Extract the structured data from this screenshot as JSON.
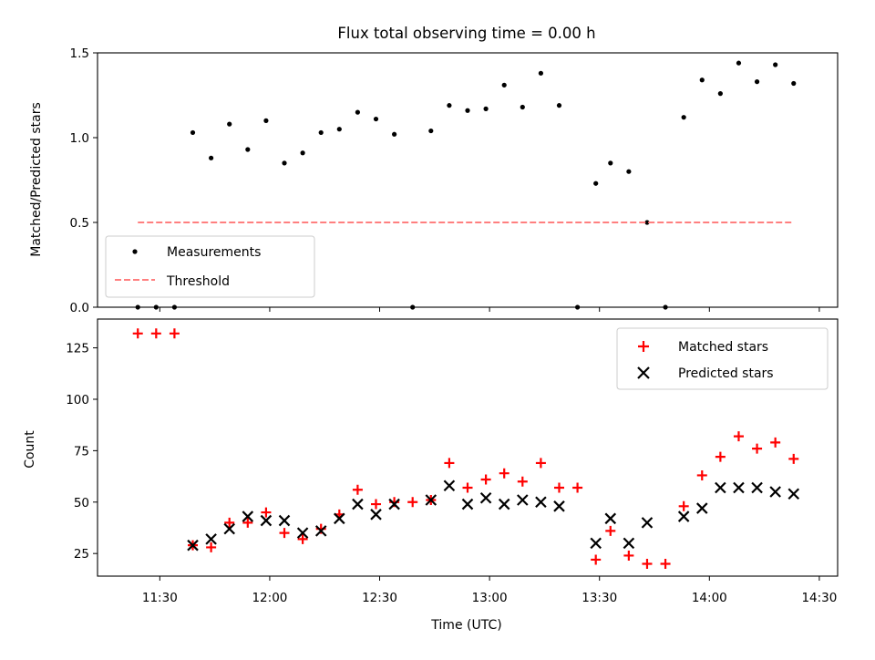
{
  "chart_data": [
    {
      "type": "scatter",
      "title": "Flux total observing time = 0.00 h",
      "ylabel": "Matched/Predicted stars",
      "xlabel": "",
      "ylim": [
        0,
        1.5
      ],
      "xlim": [
        "11:13",
        "14:35"
      ],
      "yticks": [
        0.0,
        0.5,
        1.0,
        1.5
      ],
      "ytick_labels": [
        "0.0",
        "0.5",
        "1.0",
        "1.5"
      ],
      "grid": false,
      "legend": {
        "placement": "lower-left",
        "entries": [
          "Measurements",
          "Threshold"
        ]
      },
      "series": [
        {
          "name": "Measurements",
          "marker": "dot",
          "color": "#000000",
          "x": [
            "11:24",
            "11:29",
            "11:34",
            "11:39",
            "11:44",
            "11:49",
            "11:54",
            "11:59",
            "12:04",
            "12:09",
            "12:14",
            "12:19",
            "12:24",
            "12:29",
            "12:34",
            "12:39",
            "12:44",
            "12:49",
            "12:54",
            "12:59",
            "13:04",
            "13:09",
            "13:14",
            "13:19",
            "13:24",
            "13:29",
            "13:33",
            "13:38",
            "13:43",
            "13:48",
            "13:53",
            "13:58",
            "14:03",
            "14:08",
            "14:13",
            "14:18",
            "14:23"
          ],
          "y": [
            0.0,
            0.0,
            0.0,
            1.03,
            0.88,
            1.08,
            0.93,
            1.1,
            0.85,
            0.91,
            1.03,
            1.05,
            1.15,
            1.11,
            1.02,
            0.0,
            1.04,
            1.19,
            1.16,
            1.17,
            1.31,
            1.18,
            1.38,
            1.19,
            0.0,
            0.73,
            0.85,
            0.8,
            0.5,
            0.0,
            1.12,
            1.34,
            1.26,
            1.44,
            1.33,
            1.43,
            1.32
          ]
        },
        {
          "name": "Threshold",
          "style": "dashed",
          "color": "#ff7f7f",
          "x": [
            "11:24",
            "14:23"
          ],
          "y": [
            0.5,
            0.5
          ]
        }
      ]
    },
    {
      "type": "scatter",
      "title": "",
      "ylabel": "Count",
      "xlabel": "Time (UTC)",
      "ylim": [
        14,
        139
      ],
      "xlim": [
        "11:13",
        "14:35"
      ],
      "yticks": [
        25,
        50,
        75,
        100,
        125
      ],
      "ytick_labels": [
        "25",
        "50",
        "75",
        "100",
        "125"
      ],
      "xticks": [
        "11:30",
        "12:00",
        "12:30",
        "13:00",
        "13:30",
        "14:00",
        "14:30"
      ],
      "grid": false,
      "legend": {
        "placement": "top-right",
        "entries": [
          "Matched stars",
          "Predicted stars"
        ]
      },
      "series": [
        {
          "name": "Matched stars",
          "marker": "plus",
          "color": "#ff0000",
          "x": [
            "11:24",
            "11:29",
            "11:34",
            "11:39",
            "11:44",
            "11:49",
            "11:54",
            "11:59",
            "12:04",
            "12:09",
            "12:14",
            "12:19",
            "12:24",
            "12:29",
            "12:34",
            "12:39",
            "12:44",
            "12:49",
            "12:54",
            "12:59",
            "13:04",
            "13:09",
            "13:14",
            "13:19",
            "13:24",
            "13:29",
            "13:33",
            "13:38",
            "13:43",
            "13:48",
            "13:53",
            "13:58",
            "14:03",
            "14:08",
            "14:13",
            "14:18",
            "14:23"
          ],
          "y": [
            132,
            132,
            132,
            29,
            28,
            40,
            40,
            45,
            35,
            32,
            37,
            44,
            56,
            49,
            50,
            50,
            51,
            69,
            57,
            61,
            64,
            60,
            69,
            57,
            57,
            22,
            36,
            24,
            20,
            20,
            48,
            63,
            72,
            82,
            76,
            79,
            71
          ]
        },
        {
          "name": "Predicted stars",
          "marker": "x",
          "color": "#000000",
          "x": [
            "11:39",
            "11:44",
            "11:49",
            "11:54",
            "11:59",
            "12:04",
            "12:09",
            "12:14",
            "12:19",
            "12:24",
            "12:29",
            "12:34",
            "12:44",
            "12:49",
            "12:54",
            "12:59",
            "13:04",
            "13:09",
            "13:14",
            "13:19",
            "13:29",
            "13:33",
            "13:38",
            "13:43",
            "13:53",
            "13:58",
            "14:03",
            "14:08",
            "14:13",
            "14:18",
            "14:23"
          ],
          "y": [
            29,
            32,
            37,
            43,
            41,
            41,
            35,
            36,
            42,
            49,
            44,
            49,
            51,
            58,
            49,
            52,
            49,
            51,
            50,
            48,
            30,
            42,
            30,
            40,
            43,
            47,
            57,
            57,
            57,
            55,
            54
          ]
        }
      ]
    }
  ]
}
